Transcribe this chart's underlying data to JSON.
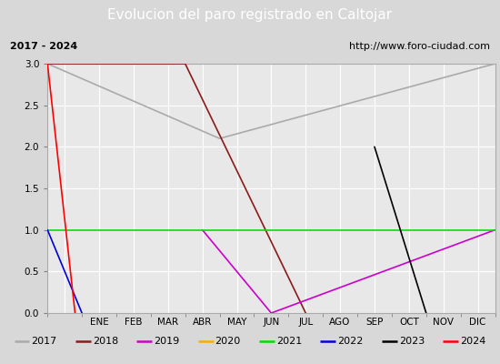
{
  "title": "Evolucion del paro registrado en Caltojar",
  "title_bg": "#4477cc",
  "title_color": "white",
  "subtitle_left": "2017 - 2024",
  "subtitle_right": "http://www.foro-ciudad.com",
  "xlabel_months": [
    "ENE",
    "FEB",
    "MAR",
    "ABR",
    "MAY",
    "JUN",
    "JUL",
    "AGO",
    "SEP",
    "OCT",
    "NOV",
    "DIC"
  ],
  "ylim": [
    0.0,
    3.0
  ],
  "yticks": [
    0.0,
    0.5,
    1.0,
    1.5,
    2.0,
    2.5,
    3.0
  ],
  "series": {
    "2017": {
      "color": "#aaaaaa",
      "months": [
        0.0,
        5.0,
        13.0
      ],
      "values": [
        3.0,
        2.1,
        3.0
      ]
    },
    "2018": {
      "color": "#8b1a1a",
      "months": [
        0.0,
        4.0,
        7.5
      ],
      "values": [
        3.0,
        3.0,
        0.0
      ]
    },
    "2019": {
      "color": "#cc00cc",
      "months": [
        4.5,
        6.5,
        13.0
      ],
      "values": [
        1.0,
        0.0,
        1.0
      ]
    },
    "2020": {
      "color": "#ffaa00",
      "months": [],
      "values": []
    },
    "2021": {
      "color": "#00dd00",
      "months": [
        0.0,
        13.0
      ],
      "values": [
        1.0,
        1.0
      ]
    },
    "2022": {
      "color": "#0000dd",
      "months": [
        0.0,
        1.0
      ],
      "values": [
        1.0,
        0.0
      ]
    },
    "2023": {
      "color": "#000000",
      "months": [
        9.5,
        11.0
      ],
      "values": [
        2.0,
        0.0
      ]
    },
    "2024": {
      "color": "#ff0000",
      "months": [
        0.0,
        0.8
      ],
      "values": [
        3.0,
        0.0
      ]
    }
  },
  "legend_order": [
    "2017",
    "2018",
    "2019",
    "2020",
    "2021",
    "2022",
    "2023",
    "2024"
  ],
  "bg_plot": "#e8e8e8",
  "bg_fig": "#d8d8d8",
  "plot_border_color": "#aaaaaa",
  "grid_color": "#ffffff",
  "title_fontsize": 11,
  "subtitle_fontsize": 8,
  "tick_fontsize": 7.5,
  "legend_fontsize": 8
}
